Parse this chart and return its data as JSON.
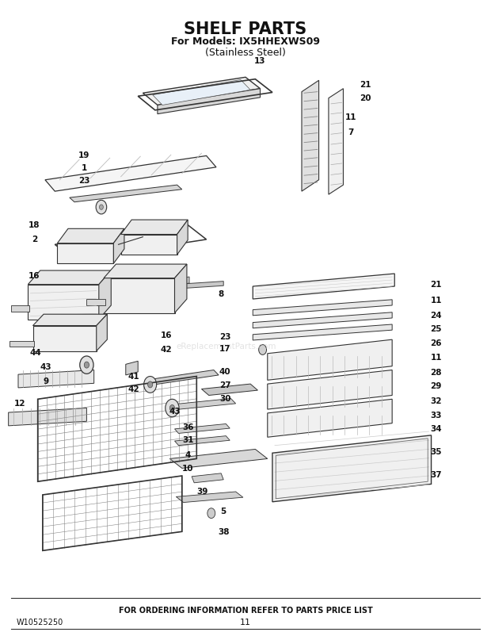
{
  "title": "SHELF PARTS",
  "subtitle1": "For Models: IX5HHEXWS09",
  "subtitle2": "(Stainless Steel)",
  "footer_text": "FOR ORDERING INFORMATION REFER TO PARTS PRICE LIST",
  "doc_number": "W10525250",
  "page_number": "11",
  "bg_color": "#ffffff",
  "title_fontsize": 15,
  "subtitle_fontsize": 9,
  "footer_fontsize": 7,
  "watermark": "eReplacementParts.com"
}
